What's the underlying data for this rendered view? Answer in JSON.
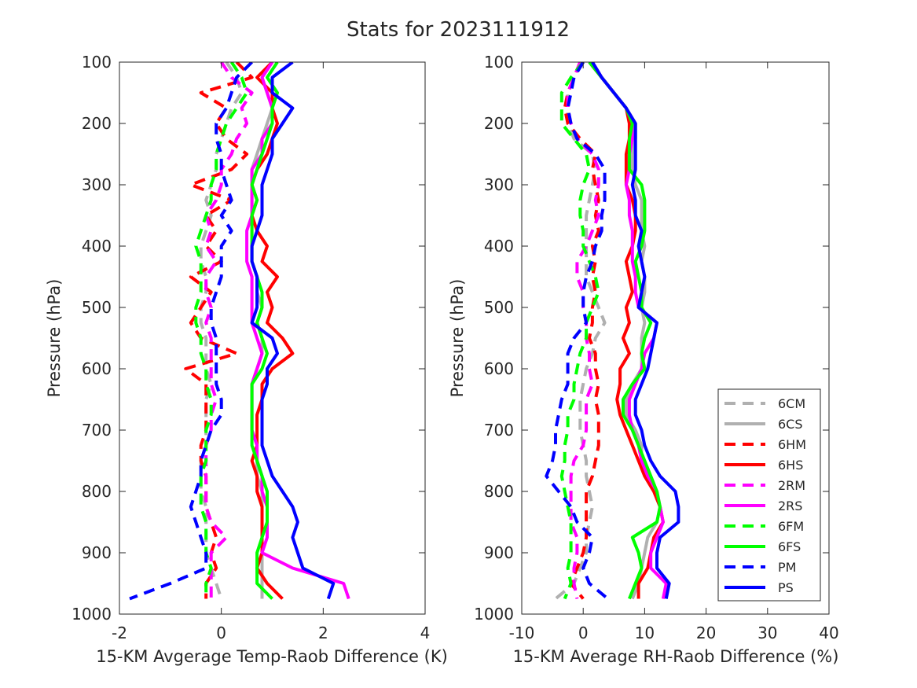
{
  "figure": {
    "title": "Stats for 2023111912"
  },
  "colors": {
    "6C": "#b0b0b0",
    "6H": "#ff0000",
    "2R": "#ff00ff",
    "6F": "#00ff00",
    "P": "#0000ff",
    "axes": "#262626"
  },
  "legend": {
    "placement": "bottom-right of right panel",
    "entries": [
      {
        "label": "6CM",
        "color": "#b0b0b0",
        "style": "dashed"
      },
      {
        "label": "6CS",
        "color": "#b0b0b0",
        "style": "solid"
      },
      {
        "label": "6HM",
        "color": "#ff0000",
        "style": "dashed"
      },
      {
        "label": "6HS",
        "color": "#ff0000",
        "style": "solid"
      },
      {
        "label": "2RM",
        "color": "#ff00ff",
        "style": "dashed"
      },
      {
        "label": "2RS",
        "color": "#ff00ff",
        "style": "solid"
      },
      {
        "label": "6FM",
        "color": "#00ff00",
        "style": "dashed"
      },
      {
        "label": "6FS",
        "color": "#00ff00",
        "style": "solid"
      },
      {
        "label": "PM",
        "color": "#0000ff",
        "style": "dashed"
      },
      {
        "label": "PS",
        "color": "#0000ff",
        "style": "solid"
      }
    ]
  },
  "chart_data": [
    {
      "type": "line",
      "orientation": "vertical-profile",
      "xlabel": "15-KM Avgerage Temp-Raob Difference (K)",
      "ylabel": "Pressure (hPa)",
      "xlim": [
        -2,
        4
      ],
      "ylim": [
        1000,
        100
      ],
      "y_reversed": true,
      "xticks": [
        "-2",
        "0",
        "2",
        "4"
      ],
      "yticks": [
        "100",
        "200",
        "300",
        "400",
        "500",
        "600",
        "700",
        "800",
        "900",
        "1000"
      ],
      "grid": false,
      "pressure": [
        100,
        125,
        150,
        175,
        200,
        225,
        250,
        275,
        300,
        325,
        350,
        375,
        400,
        425,
        450,
        475,
        500,
        525,
        550,
        575,
        600,
        625,
        650,
        675,
        700,
        725,
        750,
        775,
        800,
        825,
        850,
        875,
        900,
        925,
        950,
        975
      ],
      "series": [
        {
          "name": "6CM",
          "style": "dashed",
          "values": [
            0.1,
            0.3,
            0.4,
            0.2,
            0.1,
            0.0,
            -0.1,
            -0.1,
            -0.2,
            -0.3,
            -0.2,
            -0.3,
            -0.4,
            -0.4,
            -0.3,
            -0.3,
            -0.4,
            -0.4,
            -0.3,
            -0.3,
            -0.3,
            -0.2,
            -0.3,
            -0.3,
            -0.3,
            -0.3,
            -0.4,
            -0.4,
            -0.4,
            -0.3,
            -0.3,
            -0.3,
            -0.3,
            -0.2,
            -0.1,
            0.0
          ]
        },
        {
          "name": "6CS",
          "style": "solid",
          "values": [
            1.0,
            0.8,
            0.9,
            1.0,
            0.9,
            0.8,
            0.7,
            0.6,
            0.6,
            0.6,
            0.6,
            0.6,
            0.6,
            0.6,
            0.7,
            0.7,
            0.8,
            0.7,
            0.8,
            0.8,
            0.7,
            0.6,
            0.6,
            0.6,
            0.6,
            0.7,
            0.7,
            0.7,
            0.8,
            0.8,
            0.8,
            0.8,
            0.8,
            0.8,
            0.8,
            0.8
          ]
        },
        {
          "name": "6HM",
          "style": "dashed",
          "values": [
            0.3,
            0.6,
            -0.4,
            0.1,
            -0.1,
            0.1,
            0.5,
            0.2,
            -0.6,
            0.2,
            -0.3,
            -0.1,
            -0.3,
            0.0,
            -0.6,
            -0.2,
            -0.4,
            -0.6,
            -0.4,
            0.3,
            -0.7,
            -0.3,
            -0.3,
            -0.3,
            -0.3,
            -0.4,
            -0.4,
            -0.3,
            -0.3,
            -0.3,
            -0.2,
            -0.1,
            -0.2,
            -0.1,
            -0.3,
            -0.3
          ]
        },
        {
          "name": "6HS",
          "style": "solid",
          "values": [
            1.0,
            0.7,
            1.0,
            1.0,
            1.1,
            1.0,
            0.9,
            0.7,
            0.6,
            0.7,
            0.6,
            0.7,
            0.9,
            0.8,
            1.1,
            0.9,
            1.0,
            0.9,
            1.2,
            1.4,
            1.0,
            0.8,
            0.8,
            0.7,
            0.7,
            0.7,
            0.6,
            0.7,
            0.7,
            0.8,
            0.8,
            0.8,
            0.8,
            0.7,
            0.9,
            1.2
          ]
        },
        {
          "name": "2RM",
          "style": "dashed",
          "values": [
            0.0,
            0.2,
            0.6,
            0.4,
            0.5,
            0.3,
            0.2,
            0.0,
            0.0,
            -0.1,
            -0.3,
            -0.2,
            -0.3,
            -0.1,
            -0.3,
            -0.3,
            -0.2,
            -0.3,
            -0.2,
            -0.2,
            -0.2,
            -0.2,
            -0.1,
            -0.2,
            -0.2,
            -0.3,
            -0.3,
            -0.3,
            -0.3,
            -0.3,
            -0.2,
            0.1,
            -0.2,
            -0.2,
            -0.2,
            -0.2
          ]
        },
        {
          "name": "2RS",
          "style": "solid",
          "values": [
            1.0,
            0.8,
            0.9,
            1.0,
            1.0,
            0.8,
            0.8,
            0.6,
            0.6,
            0.6,
            0.6,
            0.5,
            0.5,
            0.5,
            0.6,
            0.6,
            0.6,
            0.6,
            0.7,
            0.8,
            0.7,
            0.6,
            0.6,
            0.6,
            0.6,
            0.7,
            0.7,
            0.8,
            0.8,
            0.9,
            0.9,
            0.9,
            0.8,
            1.4,
            2.4,
            2.5
          ]
        },
        {
          "name": "6FM",
          "style": "dashed",
          "values": [
            0.2,
            0.4,
            0.5,
            0.3,
            0.1,
            0.0,
            -0.1,
            -0.1,
            -0.2,
            -0.2,
            -0.3,
            -0.4,
            -0.5,
            -0.4,
            -0.4,
            -0.4,
            -0.5,
            -0.5,
            -0.4,
            -0.4,
            -0.3,
            -0.3,
            -0.2,
            -0.2,
            -0.3,
            -0.3,
            -0.3,
            -0.4,
            -0.4,
            -0.4,
            -0.3,
            -0.3,
            -0.3,
            -0.2,
            -0.3,
            -0.3
          ]
        },
        {
          "name": "6FS",
          "style": "solid",
          "values": [
            1.1,
            0.9,
            1.1,
            1.0,
            1.0,
            0.9,
            0.8,
            0.7,
            0.6,
            0.7,
            0.6,
            0.6,
            0.6,
            0.6,
            0.7,
            0.8,
            0.8,
            0.7,
            0.8,
            0.9,
            0.8,
            0.6,
            0.6,
            0.6,
            0.6,
            0.6,
            0.7,
            0.8,
            0.9,
            0.9,
            0.9,
            0.8,
            0.7,
            0.7,
            0.7,
            1.0
          ]
        },
        {
          "name": "PM",
          "style": "dashed",
          "values": [
            0.6,
            0.3,
            0.2,
            0.1,
            -0.1,
            -0.1,
            0.0,
            0.0,
            0.1,
            0.2,
            0.0,
            0.2,
            0.0,
            0.0,
            0.0,
            -0.1,
            -0.2,
            -0.2,
            -0.1,
            -0.1,
            -0.1,
            -0.1,
            0.0,
            0.0,
            -0.2,
            -0.3,
            -0.4,
            -0.4,
            -0.5,
            -0.6,
            -0.5,
            -0.4,
            -0.3,
            -0.3,
            -1.0,
            -1.8
          ]
        },
        {
          "name": "PS",
          "style": "solid",
          "values": [
            1.4,
            1.0,
            1.0,
            1.4,
            1.2,
            1.0,
            1.0,
            0.9,
            0.8,
            0.8,
            0.8,
            0.7,
            0.6,
            0.6,
            0.7,
            0.7,
            0.7,
            0.6,
            1.0,
            1.1,
            0.9,
            0.9,
            0.8,
            0.8,
            0.8,
            0.8,
            0.9,
            1.0,
            1.2,
            1.4,
            1.5,
            1.4,
            1.5,
            1.6,
            2.2,
            2.1
          ]
        }
      ]
    },
    {
      "type": "line",
      "orientation": "vertical-profile",
      "xlabel": "15-KM Average RH-Raob Difference (%)",
      "ylabel": "Pressure (hPa)",
      "xlim": [
        -10,
        40
      ],
      "ylim": [
        1000,
        100
      ],
      "y_reversed": true,
      "xticks": [
        "-10",
        "0",
        "10",
        "20",
        "30",
        "40"
      ],
      "yticks": [
        "100",
        "200",
        "300",
        "400",
        "500",
        "600",
        "700",
        "800",
        "900",
        "1000"
      ],
      "grid": false,
      "pressure": [
        100,
        125,
        150,
        175,
        200,
        225,
        250,
        275,
        300,
        325,
        350,
        375,
        400,
        425,
        450,
        475,
        500,
        525,
        550,
        575,
        600,
        625,
        650,
        675,
        700,
        725,
        750,
        775,
        800,
        825,
        850,
        875,
        900,
        925,
        950,
        975
      ],
      "series": [
        {
          "name": "6CM",
          "style": "dashed",
          "values": [
            0.0,
            -1.5,
            -2.5,
            -2.5,
            -2.5,
            -1.5,
            1.5,
            2.0,
            1.5,
            1.0,
            0.5,
            0.5,
            0.5,
            0.5,
            0.5,
            1.5,
            2.5,
            3.5,
            2.0,
            1.5,
            0.5,
            0.0,
            -0.5,
            -0.5,
            -0.5,
            0.0,
            0.5,
            0.5,
            1.0,
            1.5,
            1.0,
            0.5,
            0.5,
            -0.5,
            -1.5,
            -4.5
          ]
        },
        {
          "name": "6CS",
          "style": "solid",
          "values": [
            1.0,
            3.0,
            5.0,
            7.0,
            8.5,
            8.5,
            8.0,
            8.0,
            8.5,
            9.5,
            9.5,
            9.5,
            10.0,
            9.5,
            10.0,
            10.0,
            9.5,
            10.0,
            9.5,
            9.5,
            9.5,
            8.0,
            7.0,
            7.0,
            8.5,
            9.5,
            9.5,
            10.0,
            11.5,
            12.5,
            12.0,
            10.5,
            10.0,
            9.5,
            9.0,
            8.0
          ]
        },
        {
          "name": "6HM",
          "style": "dashed",
          "values": [
            -0.5,
            -1.5,
            -2.5,
            -3.0,
            -2.5,
            -0.5,
            2.0,
            1.5,
            2.0,
            2.5,
            2.0,
            2.5,
            1.5,
            2.0,
            1.5,
            2.0,
            1.5,
            1.5,
            1.0,
            2.0,
            2.0,
            2.5,
            2.0,
            2.5,
            2.5,
            2.5,
            2.0,
            1.5,
            0.5,
            0.5,
            0.5,
            0.5,
            0.0,
            -1.0,
            -2.0,
            0.0
          ]
        },
        {
          "name": "6HS",
          "style": "solid",
          "values": [
            1.0,
            3.0,
            5.0,
            7.0,
            7.5,
            7.5,
            7.0,
            7.0,
            7.0,
            8.0,
            8.5,
            8.5,
            8.0,
            7.0,
            7.5,
            8.0,
            7.0,
            7.5,
            6.5,
            7.5,
            6.0,
            6.0,
            5.5,
            6.0,
            7.0,
            8.0,
            9.0,
            10.0,
            11.5,
            12.5,
            13.0,
            11.5,
            11.0,
            10.5,
            9.0,
            9.0
          ]
        },
        {
          "name": "2RM",
          "style": "dashed",
          "values": [
            -0.5,
            -1.5,
            -2.5,
            -2.5,
            -2.0,
            -1.0,
            1.5,
            2.5,
            2.5,
            2.0,
            2.5,
            1.5,
            0.5,
            -1.0,
            -1.0,
            0.0,
            0.0,
            0.5,
            0.5,
            1.0,
            1.0,
            1.5,
            0.5,
            0.5,
            0.5,
            0.0,
            -1.5,
            -2.0,
            -2.0,
            -2.0,
            -2.0,
            -1.0,
            -1.0,
            -1.5,
            -1.5,
            -1.0
          ]
        },
        {
          "name": "2RS",
          "style": "solid",
          "values": [
            1.5,
            3.0,
            5.0,
            7.0,
            8.0,
            8.0,
            7.5,
            7.5,
            7.0,
            7.5,
            7.5,
            8.0,
            8.0,
            8.0,
            8.5,
            8.5,
            9.0,
            12.0,
            11.5,
            10.0,
            9.5,
            8.5,
            7.5,
            7.5,
            8.0,
            9.0,
            9.5,
            10.5,
            12.0,
            12.5,
            13.0,
            12.0,
            11.0,
            11.0,
            13.5,
            13.0
          ]
        },
        {
          "name": "6FM",
          "style": "dashed",
          "values": [
            0.0,
            -2.0,
            -3.5,
            -3.5,
            -3.5,
            -1.5,
            0.5,
            1.0,
            0.0,
            -0.5,
            -0.5,
            0.0,
            0.0,
            1.0,
            2.0,
            2.5,
            1.5,
            0.5,
            0.5,
            -0.5,
            -1.0,
            -1.5,
            -1.5,
            -2.5,
            -2.5,
            -3.0,
            -3.0,
            -3.5,
            -3.0,
            -2.5,
            -2.0,
            -2.0,
            -2.0,
            -2.5,
            -2.0,
            -3.0
          ]
        },
        {
          "name": "6FS",
          "style": "solid",
          "values": [
            1.0,
            3.0,
            5.0,
            7.0,
            8.0,
            7.5,
            7.5,
            7.5,
            9.5,
            10.0,
            10.0,
            10.0,
            9.5,
            8.5,
            9.0,
            9.5,
            9.5,
            11.0,
            10.0,
            9.5,
            10.0,
            8.0,
            6.5,
            6.5,
            8.0,
            9.0,
            10.0,
            11.0,
            12.0,
            12.5,
            12.0,
            8.0,
            9.0,
            9.5,
            8.5,
            7.5
          ]
        },
        {
          "name": "PM",
          "style": "dashed",
          "values": [
            0.0,
            -1.5,
            -2.0,
            -2.5,
            -2.0,
            -1.0,
            2.0,
            3.5,
            3.5,
            3.5,
            3.0,
            3.0,
            2.0,
            1.5,
            0.5,
            0.0,
            0.0,
            0.5,
            -1.5,
            -2.5,
            -2.5,
            -2.5,
            -3.5,
            -4.0,
            -4.5,
            -4.5,
            -5.0,
            -6.0,
            -4.0,
            -2.0,
            -1.0,
            1.5,
            1.0,
            0.0,
            1.0,
            4.0
          ]
        },
        {
          "name": "PS",
          "style": "solid",
          "values": [
            1.5,
            3.0,
            5.0,
            7.0,
            8.5,
            8.5,
            8.5,
            8.5,
            8.0,
            8.5,
            8.5,
            9.5,
            9.0,
            9.5,
            10.0,
            9.5,
            9.0,
            12.0,
            11.5,
            11.0,
            10.5,
            9.5,
            8.5,
            8.5,
            9.5,
            10.0,
            11.0,
            12.5,
            15.0,
            15.5,
            15.5,
            12.5,
            12.0,
            12.0,
            14.0,
            13.5
          ]
        }
      ]
    }
  ]
}
